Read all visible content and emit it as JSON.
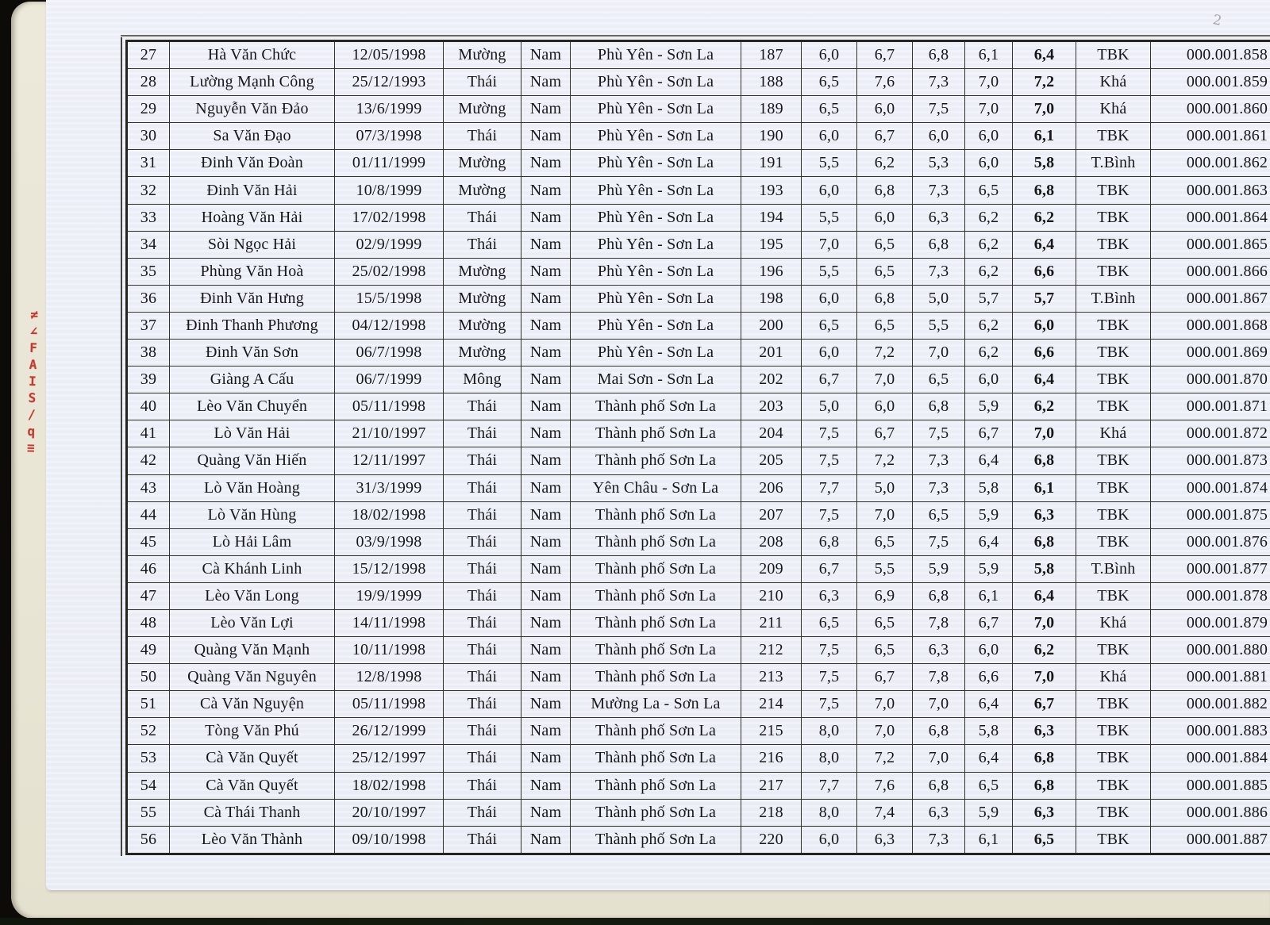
{
  "page": {
    "corner_mark": "2",
    "margin_note_chars": [
      "≠",
      "∠",
      "F",
      "A",
      "I",
      "S",
      "/",
      "q",
      "≡"
    ],
    "margin_note_color": "#c23a30"
  },
  "table": {
    "columns": [
      "no",
      "name",
      "dob",
      "ethnicity",
      "gender",
      "place",
      "candidate_no",
      "score1",
      "score2",
      "score3",
      "score4",
      "average",
      "grade",
      "id"
    ],
    "rows": [
      {
        "no": "27",
        "name": "Hà Văn  Chức",
        "dob": "12/05/1998",
        "ethnicity": "Mường",
        "gender": "Nam",
        "place": "Phù Yên - Sơn La",
        "candidate_no": "187",
        "scores": [
          "6,0",
          "6,7",
          "6,8",
          "6,1"
        ],
        "average": "6,4",
        "grade": "TBK",
        "id": "000.001.858"
      },
      {
        "no": "28",
        "name": "Lường Mạnh  Công",
        "dob": "25/12/1993",
        "ethnicity": "Thái",
        "gender": "Nam",
        "place": "Phù Yên - Sơn La",
        "candidate_no": "188",
        "scores": [
          "6,5",
          "7,6",
          "7,3",
          "7,0"
        ],
        "average": "7,2",
        "grade": "Khá",
        "id": "000.001.859"
      },
      {
        "no": "29",
        "name": "Nguyễn Văn  Đảo",
        "dob": "13/6/1999",
        "ethnicity": "Mường",
        "gender": "Nam",
        "place": "Phù Yên - Sơn La",
        "candidate_no": "189",
        "scores": [
          "6,5",
          "6,0",
          "7,5",
          "7,0"
        ],
        "average": "7,0",
        "grade": "Khá",
        "id": "000.001.860"
      },
      {
        "no": "30",
        "name": "Sa Văn  Đạo",
        "dob": "07/3/1998",
        "ethnicity": "Thái",
        "gender": "Nam",
        "place": "Phù Yên - Sơn La",
        "candidate_no": "190",
        "scores": [
          "6,0",
          "6,7",
          "6,0",
          "6,0"
        ],
        "average": "6,1",
        "grade": "TBK",
        "id": "000.001.861"
      },
      {
        "no": "31",
        "name": "Đinh Văn  Đoàn",
        "dob": "01/11/1999",
        "ethnicity": "Mường",
        "gender": "Nam",
        "place": "Phù Yên - Sơn La",
        "candidate_no": "191",
        "scores": [
          "5,5",
          "6,2",
          "5,3",
          "6,0"
        ],
        "average": "5,8",
        "grade": "T.Bình",
        "id": "000.001.862"
      },
      {
        "no": "32",
        "name": "Đinh Văn  Hải",
        "dob": "10/8/1999",
        "ethnicity": "Mường",
        "gender": "Nam",
        "place": "Phù Yên - Sơn La",
        "candidate_no": "193",
        "scores": [
          "6,0",
          "6,8",
          "7,3",
          "6,5"
        ],
        "average": "6,8",
        "grade": "TBK",
        "id": "000.001.863"
      },
      {
        "no": "33",
        "name": "Hoàng Văn  Hải",
        "dob": "17/02/1998",
        "ethnicity": "Thái",
        "gender": "Nam",
        "place": "Phù Yên - Sơn La",
        "candidate_no": "194",
        "scores": [
          "5,5",
          "6,0",
          "6,3",
          "6,2"
        ],
        "average": "6,2",
        "grade": "TBK",
        "id": "000.001.864"
      },
      {
        "no": "34",
        "name": "Sòi Ngọc  Hải",
        "dob": "02/9/1999",
        "ethnicity": "Thái",
        "gender": "Nam",
        "place": "Phù Yên - Sơn La",
        "candidate_no": "195",
        "scores": [
          "7,0",
          "6,5",
          "6,8",
          "6,2"
        ],
        "average": "6,4",
        "grade": "TBK",
        "id": "000.001.865"
      },
      {
        "no": "35",
        "name": "Phùng Văn  Hoà",
        "dob": "25/02/1998",
        "ethnicity": "Mường",
        "gender": "Nam",
        "place": "Phù Yên - Sơn La",
        "candidate_no": "196",
        "scores": [
          "5,5",
          "6,5",
          "7,3",
          "6,2"
        ],
        "average": "6,6",
        "grade": "TBK",
        "id": "000.001.866"
      },
      {
        "no": "36",
        "name": "Đinh Văn  Hưng",
        "dob": "15/5/1998",
        "ethnicity": "Mường",
        "gender": "Nam",
        "place": "Phù Yên - Sơn La",
        "candidate_no": "198",
        "scores": [
          "6,0",
          "6,8",
          "5,0",
          "5,7"
        ],
        "average": "5,7",
        "grade": "T.Bình",
        "id": "000.001.867"
      },
      {
        "no": "37",
        "name": "Đinh Thanh  Phương",
        "dob": "04/12/1998",
        "ethnicity": "Mường",
        "gender": "Nam",
        "place": "Phù Yên - Sơn La",
        "candidate_no": "200",
        "scores": [
          "6,5",
          "6,5",
          "5,5",
          "6,2"
        ],
        "average": "6,0",
        "grade": "TBK",
        "id": "000.001.868"
      },
      {
        "no": "38",
        "name": "Đinh Văn  Sơn",
        "dob": "06/7/1998",
        "ethnicity": "Mường",
        "gender": "Nam",
        "place": "Phù Yên - Sơn La",
        "candidate_no": "201",
        "scores": [
          "6,0",
          "7,2",
          "7,0",
          "6,2"
        ],
        "average": "6,6",
        "grade": "TBK",
        "id": "000.001.869"
      },
      {
        "no": "39",
        "name": "Giàng A Cấu",
        "dob": "06/7/1999",
        "ethnicity": "Mông",
        "gender": "Nam",
        "place": "Mai Sơn - Sơn La",
        "candidate_no": "202",
        "scores": [
          "6,7",
          "7,0",
          "6,5",
          "6,0"
        ],
        "average": "6,4",
        "grade": "TBK",
        "id": "000.001.870"
      },
      {
        "no": "40",
        "name": "Lèo Văn Chuyển",
        "dob": "05/11/1998",
        "ethnicity": "Thái",
        "gender": "Nam",
        "place": "Thành phố Sơn La",
        "candidate_no": "203",
        "scores": [
          "5,0",
          "6,0",
          "6,8",
          "5,9"
        ],
        "average": "6,2",
        "grade": "TBK",
        "id": "000.001.871"
      },
      {
        "no": "41",
        "name": "Lò Văn Hải",
        "dob": "21/10/1997",
        "ethnicity": "Thái",
        "gender": "Nam",
        "place": "Thành phố Sơn La",
        "candidate_no": "204",
        "scores": [
          "7,5",
          "6,7",
          "7,5",
          "6,7"
        ],
        "average": "7,0",
        "grade": "Khá",
        "id": "000.001.872"
      },
      {
        "no": "42",
        "name": "Quàng Văn Hiến",
        "dob": "12/11/1997",
        "ethnicity": "Thái",
        "gender": "Nam",
        "place": "Thành phố Sơn La",
        "candidate_no": "205",
        "scores": [
          "7,5",
          "7,2",
          "7,3",
          "6,4"
        ],
        "average": "6,8",
        "grade": "TBK",
        "id": "000.001.873"
      },
      {
        "no": "43",
        "name": "Lò Văn Hoàng",
        "dob": "31/3/1999",
        "ethnicity": "Thái",
        "gender": "Nam",
        "place": "Yên Châu - Sơn La",
        "candidate_no": "206",
        "scores": [
          "7,7",
          "5,0",
          "7,3",
          "5,8"
        ],
        "average": "6,1",
        "grade": "TBK",
        "id": "000.001.874"
      },
      {
        "no": "44",
        "name": "Lò Văn Hùng",
        "dob": "18/02/1998",
        "ethnicity": "Thái",
        "gender": "Nam",
        "place": "Thành phố Sơn La",
        "candidate_no": "207",
        "scores": [
          "7,5",
          "7,0",
          "6,5",
          "5,9"
        ],
        "average": "6,3",
        "grade": "TBK",
        "id": "000.001.875"
      },
      {
        "no": "45",
        "name": "Lò Hải Lâm",
        "dob": "03/9/1998",
        "ethnicity": "Thái",
        "gender": "Nam",
        "place": "Thành phố Sơn La",
        "candidate_no": "208",
        "scores": [
          "6,8",
          "6,5",
          "7,5",
          "6,4"
        ],
        "average": "6,8",
        "grade": "TBK",
        "id": "000.001.876"
      },
      {
        "no": "46",
        "name": "Cà Khánh Linh",
        "dob": "15/12/1998",
        "ethnicity": "Thái",
        "gender": "Nam",
        "place": "Thành phố Sơn La",
        "candidate_no": "209",
        "scores": [
          "6,7",
          "5,5",
          "5,9",
          "5,9"
        ],
        "average": "5,8",
        "grade": "T.Bình",
        "id": "000.001.877"
      },
      {
        "no": "47",
        "name": "Lèo Văn Long",
        "dob": "19/9/1999",
        "ethnicity": "Thái",
        "gender": "Nam",
        "place": "Thành phố Sơn La",
        "candidate_no": "210",
        "scores": [
          "6,3",
          "6,9",
          "6,8",
          "6,1"
        ],
        "average": "6,4",
        "grade": "TBK",
        "id": "000.001.878"
      },
      {
        "no": "48",
        "name": "Lèo Văn Lợi",
        "dob": "14/11/1998",
        "ethnicity": "Thái",
        "gender": "Nam",
        "place": "Thành phố Sơn La",
        "candidate_no": "211",
        "scores": [
          "6,5",
          "6,5",
          "7,8",
          "6,7"
        ],
        "average": "7,0",
        "grade": "Khá",
        "id": "000.001.879"
      },
      {
        "no": "49",
        "name": "Quàng Văn Mạnh",
        "dob": "10/11/1998",
        "ethnicity": "Thái",
        "gender": "Nam",
        "place": "Thành phố Sơn La",
        "candidate_no": "212",
        "scores": [
          "7,5",
          "6,5",
          "6,3",
          "6,0"
        ],
        "average": "6,2",
        "grade": "TBK",
        "id": "000.001.880"
      },
      {
        "no": "50",
        "name": "Quàng Văn Nguyên",
        "dob": "12/8/1998",
        "ethnicity": "Thái",
        "gender": "Nam",
        "place": "Thành phố Sơn La",
        "candidate_no": "213",
        "scores": [
          "7,5",
          "6,7",
          "7,8",
          "6,6"
        ],
        "average": "7,0",
        "grade": "Khá",
        "id": "000.001.881"
      },
      {
        "no": "51",
        "name": "Cà Văn Nguyện",
        "dob": "05/11/1998",
        "ethnicity": "Thái",
        "gender": "Nam",
        "place": "Mường La - Sơn La",
        "candidate_no": "214",
        "scores": [
          "7,5",
          "7,0",
          "7,0",
          "6,4"
        ],
        "average": "6,7",
        "grade": "TBK",
        "id": "000.001.882"
      },
      {
        "no": "52",
        "name": "Tòng Văn Phú",
        "dob": "26/12/1999",
        "ethnicity": "Thái",
        "gender": "Nam",
        "place": "Thành phố Sơn La",
        "candidate_no": "215",
        "scores": [
          "8,0",
          "7,0",
          "6,8",
          "5,8"
        ],
        "average": "6,3",
        "grade": "TBK",
        "id": "000.001.883"
      },
      {
        "no": "53",
        "name": "Cà Văn Quyết",
        "dob": "25/12/1997",
        "ethnicity": "Thái",
        "gender": "Nam",
        "place": "Thành phố Sơn La",
        "candidate_no": "216",
        "scores": [
          "8,0",
          "7,2",
          "7,0",
          "6,4"
        ],
        "average": "6,8",
        "grade": "TBK",
        "id": "000.001.884"
      },
      {
        "no": "54",
        "name": "Cà Văn Quyết",
        "dob": "18/02/1998",
        "ethnicity": "Thái",
        "gender": "Nam",
        "place": "Thành phố Sơn La",
        "candidate_no": "217",
        "scores": [
          "7,7",
          "7,6",
          "6,8",
          "6,5"
        ],
        "average": "6,8",
        "grade": "TBK",
        "id": "000.001.885"
      },
      {
        "no": "55",
        "name": "Cà Thái Thanh",
        "dob": "20/10/1997",
        "ethnicity": "Thái",
        "gender": "Nam",
        "place": "Thành phố Sơn La",
        "candidate_no": "218",
        "scores": [
          "8,0",
          "7,4",
          "6,3",
          "5,9"
        ],
        "average": "6,3",
        "grade": "TBK",
        "id": "000.001.886"
      },
      {
        "no": "56",
        "name": "Lèo Văn Thành",
        "dob": "09/10/1998",
        "ethnicity": "Thái",
        "gender": "Nam",
        "place": "Thành phố Sơn La",
        "candidate_no": "220",
        "scores": [
          "6,0",
          "6,3",
          "7,3",
          "6,1"
        ],
        "average": "6,5",
        "grade": "TBK",
        "id": "000.001.887"
      }
    ]
  }
}
